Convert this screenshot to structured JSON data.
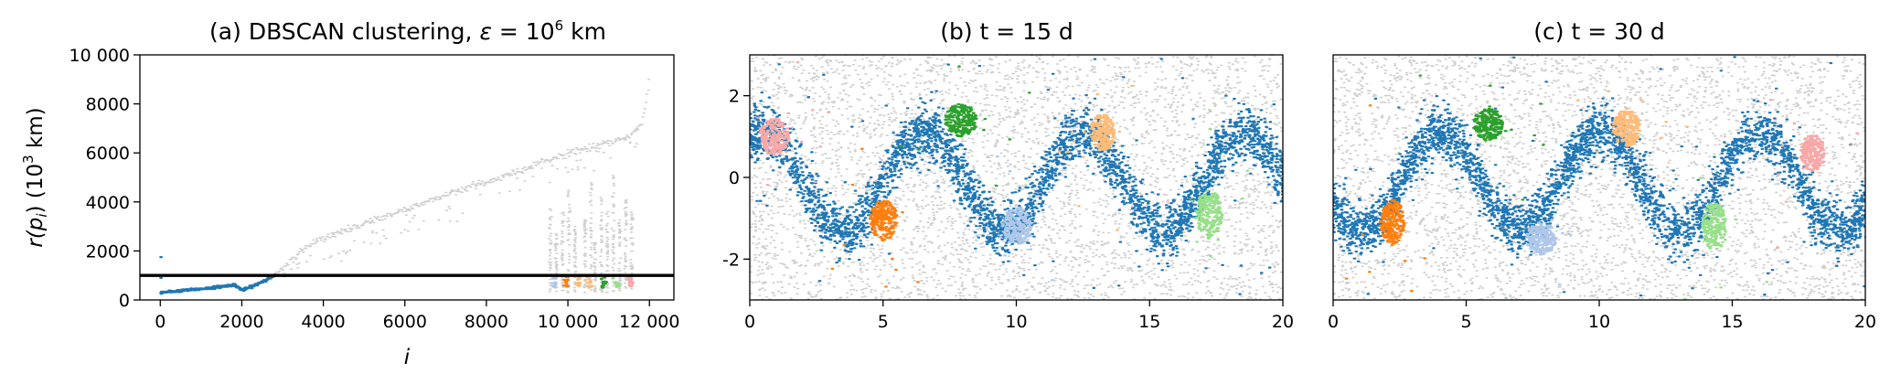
{
  "chart_data": [
    {
      "type": "scatter",
      "title_main": "(a) DBSCAN clustering, ",
      "title_eps": "ε",
      "title_eq": " = 10",
      "title_sup": "6",
      "title_unit": " km",
      "xlabel": "i",
      "ylabel_main": "r(p",
      "ylabel_sub": "i",
      "ylabel_tail": ") (10",
      "ylabel_sup": "3",
      "ylabel_unit": " km)",
      "xlim": [
        -500,
        12600
      ],
      "ylim": [
        0,
        10000
      ],
      "xticks": [
        0,
        2000,
        4000,
        6000,
        8000,
        10000,
        12000
      ],
      "xtick_labels": [
        "0",
        "2000",
        "4000",
        "6000",
        "8000",
        "10 000",
        "12 000"
      ],
      "yticks": [
        0,
        2000,
        4000,
        6000,
        8000,
        10000
      ],
      "ytick_labels": [
        "0",
        "2000",
        "4000",
        "6000",
        "8000",
        "10 000"
      ],
      "threshold": 1000,
      "noise_curve": [
        [
          2800,
          1000
        ],
        [
          3300,
          1800
        ],
        [
          3800,
          2400
        ],
        [
          4300,
          2700
        ],
        [
          5000,
          3100
        ],
        [
          5500,
          3400
        ],
        [
          6000,
          3700
        ],
        [
          6500,
          4000
        ],
        [
          7000,
          4300
        ],
        [
          7500,
          4600
        ],
        [
          8000,
          4800
        ],
        [
          8500,
          5100
        ],
        [
          9000,
          5400
        ],
        [
          9500,
          5700
        ],
        [
          10000,
          6000
        ],
        [
          10500,
          6200
        ],
        [
          11000,
          6400
        ],
        [
          11500,
          6700
        ],
        [
          11800,
          7200
        ],
        [
          12000,
          9000
        ]
      ],
      "core_curve": [
        [
          0,
          300
        ],
        [
          500,
          380
        ],
        [
          1000,
          450
        ],
        [
          1500,
          550
        ],
        [
          1800,
          620
        ],
        [
          2000,
          400
        ],
        [
          2300,
          600
        ],
        [
          2600,
          850
        ],
        [
          2800,
          1000
        ]
      ],
      "spikes": [
        [
          9550,
          0.65
        ],
        [
          9700,
          0.45
        ],
        [
          9850,
          0.6
        ],
        [
          10000,
          0.75
        ],
        [
          10150,
          0.5
        ],
        [
          10400,
          0.55
        ],
        [
          10550,
          0.8
        ],
        [
          10650,
          0.4
        ],
        [
          10800,
          0.7
        ],
        [
          10950,
          0.6
        ],
        [
          11100,
          0.85
        ],
        [
          11250,
          0.55
        ],
        [
          11400,
          0.7
        ],
        [
          11550,
          0.6
        ]
      ],
      "clusters_at_base": [
        [
          9650,
          "light-blue"
        ],
        [
          9950,
          "orange"
        ],
        [
          10250,
          "light-orange"
        ],
        [
          10500,
          "light-orange"
        ],
        [
          10850,
          "green"
        ],
        [
          11200,
          "light-green"
        ],
        [
          11500,
          "salmon"
        ]
      ],
      "series": [
        {
          "name": "",
          "color": "#d0d0d0"
        },
        {
          "name": "",
          "color": "#1f77b4"
        }
      ]
    },
    {
      "type": "scatter",
      "title": "(b) t = 15 d",
      "xlim": [
        0,
        20
      ],
      "ylim": [
        -3,
        3
      ],
      "xticks": [
        0,
        5,
        10,
        15,
        20
      ],
      "yticks": [
        2,
        0,
        -2
      ],
      "ytick_labels": [
        "2",
        "0",
        "-2"
      ],
      "jet": {
        "offset": 0.0,
        "amp": 1.2,
        "period": 12.0,
        "phase": 5.0,
        "width": 0.55
      },
      "blobs": [
        {
          "cx": 0.9,
          "cy": 1.0,
          "rx": 0.55,
          "ry": 0.45,
          "color": "#f8a8a8"
        },
        {
          "cx": 7.9,
          "cy": 1.4,
          "rx": 0.6,
          "ry": 0.4,
          "color": "#2ca02c"
        },
        {
          "cx": 13.2,
          "cy": 1.1,
          "rx": 0.45,
          "ry": 0.45,
          "color": "#ffbb78"
        },
        {
          "cx": 5.0,
          "cy": -1.05,
          "rx": 0.5,
          "ry": 0.5,
          "color": "#ff7f0e"
        },
        {
          "cx": 10.0,
          "cy": -1.2,
          "rx": 0.55,
          "ry": 0.45,
          "color": "#aec7e8"
        },
        {
          "cx": 17.2,
          "cy": -0.9,
          "rx": 0.5,
          "ry": 0.6,
          "color": "#98df8a"
        }
      ]
    },
    {
      "type": "scatter",
      "title": "(c) t = 30 d",
      "xlim": [
        0,
        20
      ],
      "ylim": [
        -3,
        3
      ],
      "xticks": [
        0,
        5,
        10,
        15,
        20
      ],
      "jet": {
        "offset": -2.5,
        "amp": 1.2,
        "period": 12.0,
        "phase": 5.0,
        "width": 0.55
      },
      "blobs": [
        {
          "cx": 5.8,
          "cy": 1.3,
          "rx": 0.55,
          "ry": 0.4,
          "color": "#2ca02c"
        },
        {
          "cx": 11.0,
          "cy": 1.2,
          "rx": 0.5,
          "ry": 0.45,
          "color": "#ffbb78"
        },
        {
          "cx": 18.0,
          "cy": 0.6,
          "rx": 0.45,
          "ry": 0.45,
          "color": "#f8a8a8"
        },
        {
          "cx": 2.2,
          "cy": -1.1,
          "rx": 0.45,
          "ry": 0.55,
          "color": "#ff7f0e"
        },
        {
          "cx": 7.8,
          "cy": -1.5,
          "rx": 0.55,
          "ry": 0.4,
          "color": "#aec7e8"
        },
        {
          "cx": 14.3,
          "cy": -1.2,
          "rx": 0.45,
          "ry": 0.6,
          "color": "#98df8a"
        }
      ]
    }
  ],
  "colors": {
    "noise": "#d0d0d0",
    "jet": "#1f77b4",
    "orange": "#ff7f0e",
    "light-orange": "#ffbb78",
    "green": "#2ca02c",
    "light-green": "#98df8a",
    "light-blue": "#aec7e8",
    "salmon": "#f8a8a8",
    "threshold": "#000000"
  }
}
